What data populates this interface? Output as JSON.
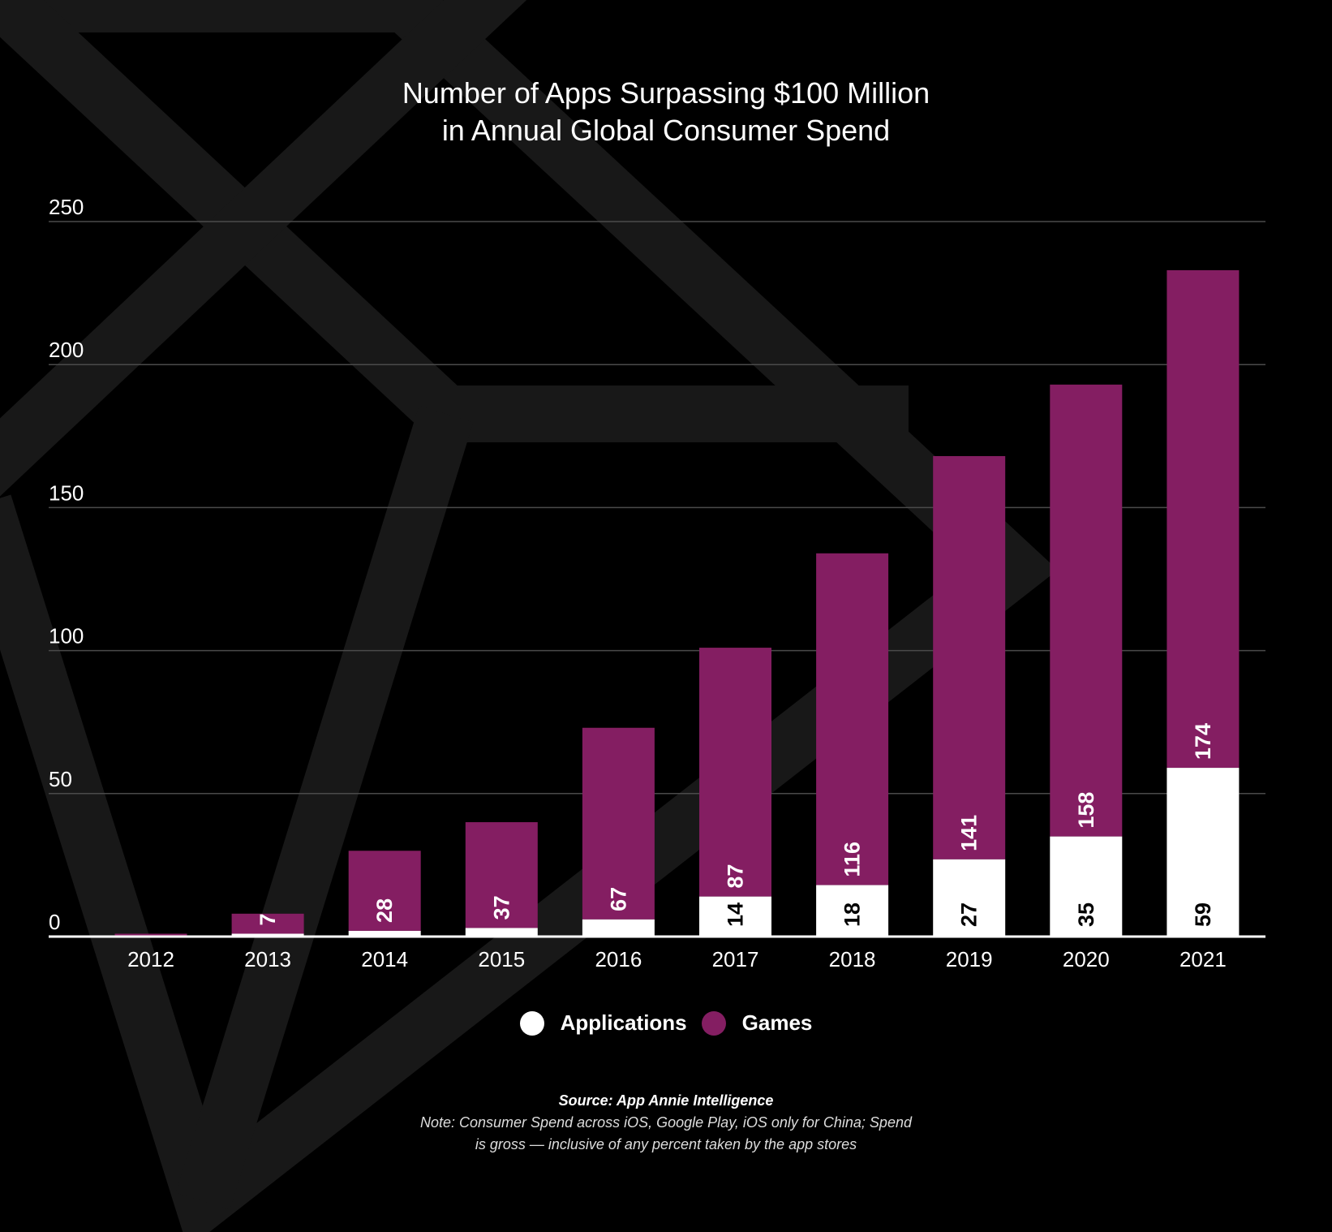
{
  "chart_data": {
    "type": "bar",
    "stacked": true,
    "title": "Number of Apps Surpassing $100 Million",
    "subtitle": "in Annual Global Consumer Spend",
    "categories": [
      "2012",
      "2013",
      "2014",
      "2015",
      "2016",
      "2017",
      "2018",
      "2019",
      "2020",
      "2021"
    ],
    "series": [
      {
        "name": "Applications",
        "color": "#ffffff",
        "values": [
          0,
          1,
          2,
          3,
          6,
          14,
          18,
          27,
          35,
          59
        ]
      },
      {
        "name": "Games",
        "color": "#841e62",
        "values": [
          1,
          7,
          28,
          37,
          67,
          87,
          116,
          141,
          158,
          174
        ]
      }
    ],
    "app_labels": [
      "",
      "",
      "",
      "",
      "",
      "14",
      "18",
      "27",
      "35",
      "59"
    ],
    "game_labels": [
      "",
      "7",
      "28",
      "37",
      "67",
      "87",
      "116",
      "141",
      "158",
      "174"
    ],
    "y_ticks": [
      0,
      50,
      100,
      150,
      200,
      250
    ],
    "ylim": [
      0,
      250
    ],
    "grid": true,
    "legend_position": "bottom-center",
    "xlabel": "",
    "ylabel": ""
  },
  "legend": {
    "applications_label": "Applications",
    "games_label": "Games"
  },
  "footer": {
    "source": "Source: App Annie Intelligence",
    "note_line1": "Note: Consumer Spend across iOS, Google Play, iOS only for China; Spend",
    "note_line2": "is gross — inclusive of any percent taken by the app stores"
  },
  "colors": {
    "background": "#000000",
    "watermark": "#181818",
    "gridline": "#4a4a4a",
    "applications": "#ffffff",
    "games": "#841e62"
  }
}
